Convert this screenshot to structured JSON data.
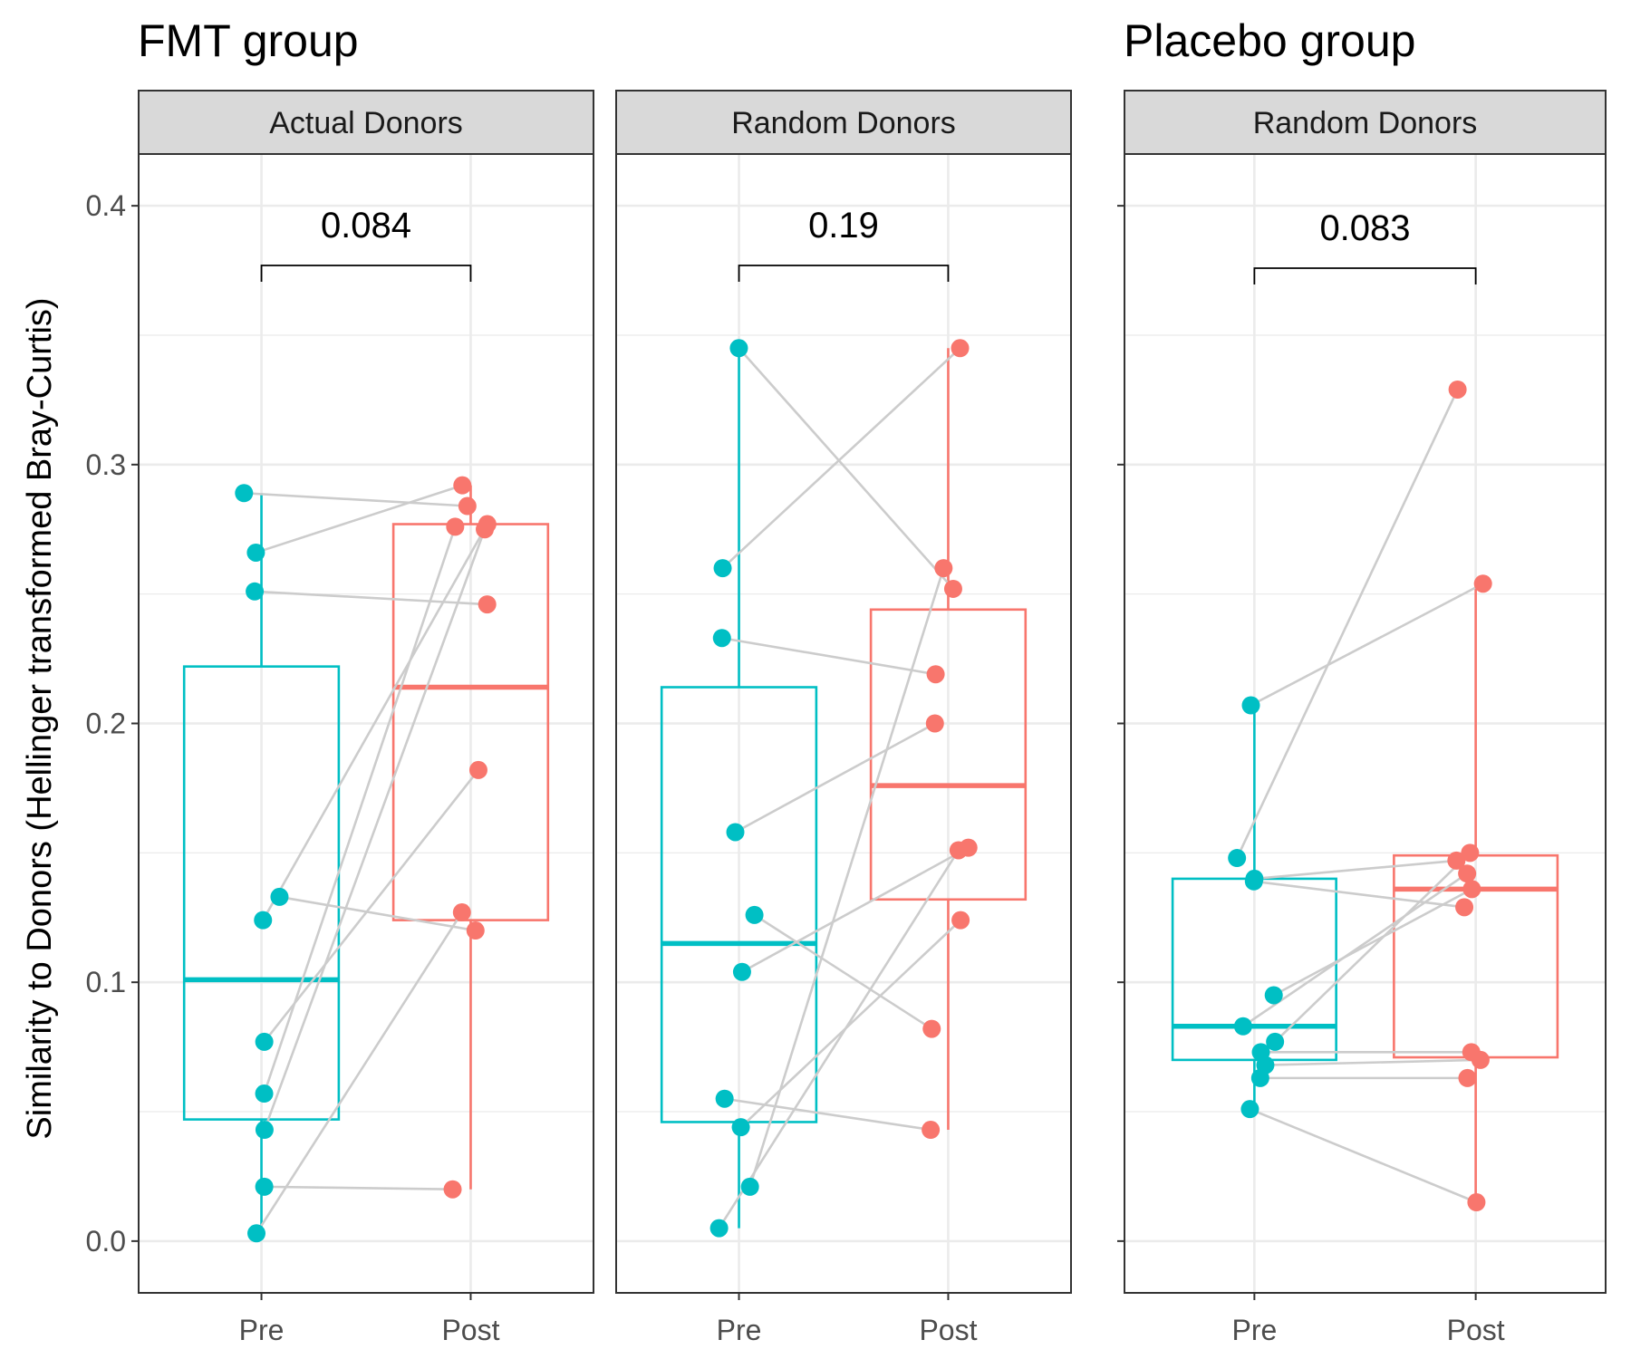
{
  "group_titles": [
    {
      "id": "fmt",
      "text": "FMT group"
    },
    {
      "id": "placebo",
      "text": "Placebo group"
    }
  ],
  "chart_data": {
    "type": "box",
    "ylabel": "Similarity to Donors (Hellinger transformed Bray-Curtis)",
    "xlabel": "",
    "ylim": [
      -0.02,
      0.42
    ],
    "y_ticks": [
      0.0,
      0.1,
      0.2,
      0.3,
      0.4
    ],
    "y_tick_labels": [
      "0.0",
      "0.1",
      "0.2",
      "0.3",
      "0.4"
    ],
    "categories": [
      "Pre",
      "Post"
    ],
    "grid": true,
    "colors": {
      "Pre": "#00BFC4",
      "Post": "#F8766D"
    },
    "panels": [
      {
        "group": "FMT group",
        "strip_label": "Actual Donors",
        "p_value": "0.084",
        "boxes": {
          "Pre": {
            "q1": 0.047,
            "median": 0.101,
            "q3": 0.222,
            "whisker_low": 0.003,
            "whisker_high": 0.289
          },
          "Post": {
            "q1": 0.124,
            "median": 0.214,
            "q3": 0.277,
            "whisker_low": 0.02,
            "whisker_high": 0.292
          }
        },
        "pairs": [
          {
            "pre": 0.289,
            "post": 0.284
          },
          {
            "pre": 0.266,
            "post": 0.292
          },
          {
            "pre": 0.251,
            "post": 0.246
          },
          {
            "pre": 0.133,
            "post": 0.12
          },
          {
            "pre": 0.124,
            "post": 0.277
          },
          {
            "pre": 0.077,
            "post": 0.182
          },
          {
            "pre": 0.057,
            "post": 0.276
          },
          {
            "pre": 0.043,
            "post": 0.275
          },
          {
            "pre": 0.021,
            "post": 0.02
          },
          {
            "pre": 0.003,
            "post": 0.127
          }
        ]
      },
      {
        "group": "FMT group",
        "strip_label": "Random Donors",
        "p_value": "0.19",
        "boxes": {
          "Pre": {
            "q1": 0.046,
            "median": 0.115,
            "q3": 0.214,
            "whisker_low": 0.005,
            "whisker_high": 0.345
          },
          "Post": {
            "q1": 0.132,
            "median": 0.176,
            "q3": 0.244,
            "whisker_low": 0.043,
            "whisker_high": 0.345
          }
        },
        "pairs": [
          {
            "pre": 0.345,
            "post": 0.252
          },
          {
            "pre": 0.26,
            "post": 0.345
          },
          {
            "pre": 0.233,
            "post": 0.219
          },
          {
            "pre": 0.158,
            "post": 0.2
          },
          {
            "pre": 0.126,
            "post": 0.082
          },
          {
            "pre": 0.104,
            "post": 0.152
          },
          {
            "pre": 0.055,
            "post": 0.043
          },
          {
            "pre": 0.044,
            "post": 0.124
          },
          {
            "pre": 0.021,
            "post": 0.26
          },
          {
            "pre": 0.005,
            "post": 0.151
          }
        ]
      },
      {
        "group": "Placebo group",
        "strip_label": "Random Donors",
        "p_value": "0.083",
        "boxes": {
          "Pre": {
            "q1": 0.07,
            "median": 0.083,
            "q3": 0.14,
            "whisker_low": 0.051,
            "whisker_high": 0.207
          },
          "Post": {
            "q1": 0.071,
            "median": 0.136,
            "q3": 0.149,
            "whisker_low": 0.015,
            "whisker_high": 0.254
          }
        },
        "pairs": [
          {
            "pre": 0.207,
            "post": 0.254
          },
          {
            "pre": 0.148,
            "post": 0.329
          },
          {
            "pre": 0.14,
            "post": 0.147
          },
          {
            "pre": 0.139,
            "post": 0.129
          },
          {
            "pre": 0.095,
            "post": 0.136
          },
          {
            "pre": 0.083,
            "post": 0.142
          },
          {
            "pre": 0.077,
            "post": 0.15
          },
          {
            "pre": 0.073,
            "post": 0.073
          },
          {
            "pre": 0.068,
            "post": 0.07
          },
          {
            "pre": 0.063,
            "post": 0.063
          },
          {
            "pre": 0.051,
            "post": 0.015
          }
        ]
      }
    ]
  }
}
